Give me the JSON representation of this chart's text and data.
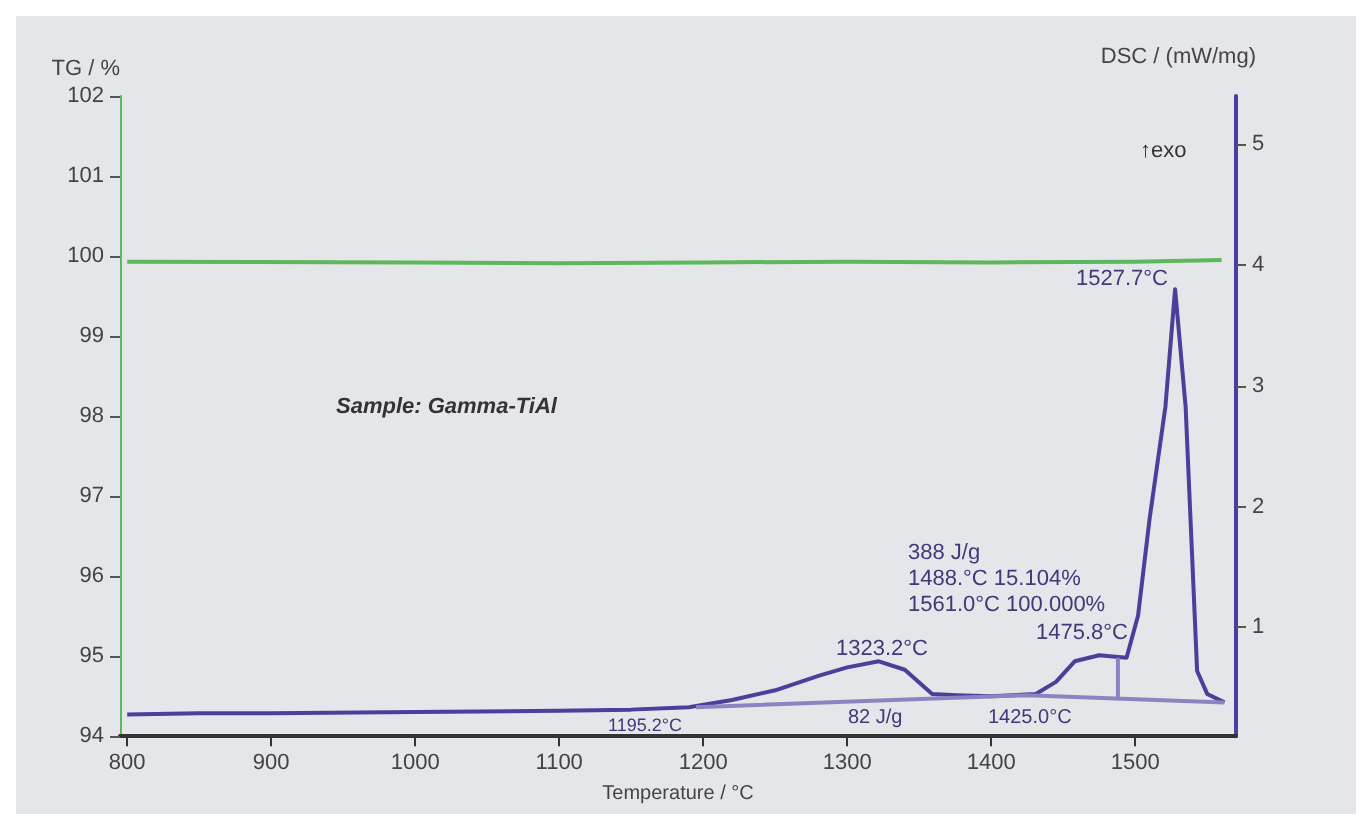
{
  "chart_data": {
    "type": "line",
    "xlabel": "Temperature / °C",
    "ylabel": "TG / %",
    "y2label": "DSC / (mW/mg)",
    "xlim": [
      795,
      1570
    ],
    "xticks": [
      800,
      900,
      1000,
      1100,
      1200,
      1300,
      1400,
      1500
    ],
    "ylim": [
      94,
      102
    ],
    "yticks": [
      94,
      95,
      96,
      97,
      98,
      99,
      100,
      101,
      102
    ],
    "y2lim": [
      0.1,
      5.4
    ],
    "y2ticks": [
      1,
      2,
      3,
      4,
      5
    ],
    "grid": false,
    "marker": "none",
    "line_style": "solid",
    "series": [
      {
        "color": "#5cb85c",
        "x": [
          800,
          1000,
          1100,
          1200,
          1300,
          1400,
          1500,
          1560
        ],
        "values": [
          99.93,
          99.92,
          99.91,
          99.92,
          99.93,
          99.92,
          99.93,
          99.95
        ]
      },
      {
        "color": "#4a3f9a",
        "axis": "y2",
        "x": [
          800,
          850,
          900,
          1000,
          1100,
          1150,
          1190,
          1220,
          1250,
          1280,
          1300,
          1322,
          1340,
          1359,
          1376,
          1400,
          1431,
          1445,
          1458,
          1475,
          1494,
          1502,
          1510,
          1521,
          1527.7,
          1535,
          1543,
          1550,
          1562
        ],
        "values": [
          0.28,
          0.29,
          0.29,
          0.3,
          0.31,
          0.32,
          0.34,
          0.4,
          0.48,
          0.6,
          0.67,
          0.72,
          0.65,
          0.45,
          0.44,
          0.43,
          0.45,
          0.55,
          0.72,
          0.77,
          0.75,
          1.1,
          1.9,
          2.83,
          3.8,
          2.83,
          0.64,
          0.45,
          0.38
        ]
      },
      {
        "color": "#8a84c0",
        "axis": "y2",
        "x": [
          1195,
          1425,
          1562
        ],
        "values": [
          0.34,
          0.44,
          0.38
        ]
      },
      {
        "color": "#8a84c0",
        "axis": "y2",
        "x": [
          1488,
          1488
        ],
        "values": [
          0.42,
          0.75
        ]
      }
    ],
    "annotations": [
      "Sample: Gamma-TiAl",
      "↑exo",
      "1527.7°C",
      "1323.2°C",
      "1475.8°C",
      "1195.2°C",
      "82 J/g",
      "1425.0°C",
      "388 J/g\n1488.°C 15.104%\n1561.0°C 100.000%"
    ]
  }
}
